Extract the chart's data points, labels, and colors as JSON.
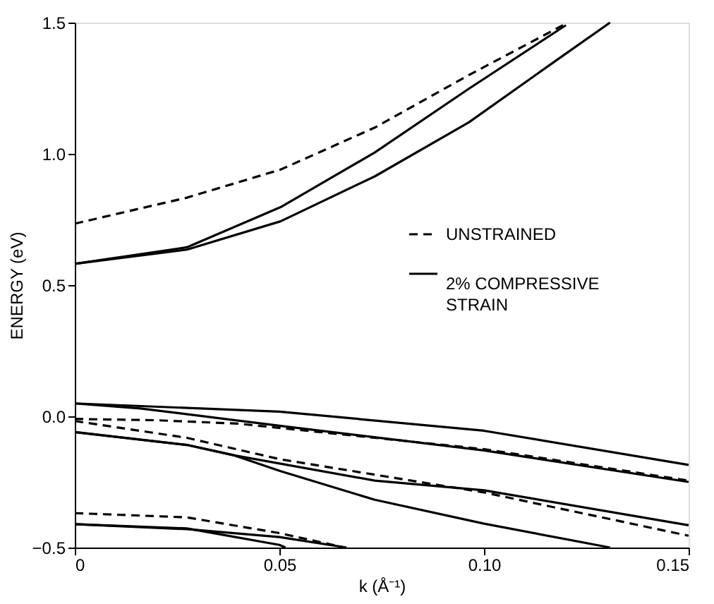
{
  "chart_data": {
    "type": "line",
    "xlabel": "k (Å⁻¹)",
    "ylabel": "ENERGY (eV)",
    "xlim": [
      0,
      0.15
    ],
    "xticks": [
      0,
      0.05,
      {
        "value": 0.1,
        "label": "0.10"
      },
      0.15
    ],
    "ylim": [
      -0.5,
      1.5
    ],
    "yticks": [
      {
        "value": -0.5,
        "label": "−0.5"
      },
      {
        "value": 0,
        "label": "0.0"
      },
      0.5,
      {
        "value": 1,
        "label": "1.0"
      },
      1.5
    ],
    "grid": false,
    "legend": "right",
    "marker": "none",
    "series": [
      {
        "name": "UNSTRAINED",
        "color": "#000000",
        "line_style": "dashed",
        "x": [
          0,
          0.0274,
          0.0503,
          0.0733,
          0.0963,
          0.1193
        ],
        "values": [
          0.734,
          0.833,
          0.94,
          1.1,
          1.3,
          1.49
        ]
      },
      {
        "name": "2% COMPRESSIVE STRAIN",
        "color": "#000000",
        "line_style": "solid",
        "x": [
          0,
          0.0274,
          0.0503,
          0.0733,
          0.0963,
          0.12
        ],
        "values": [
          0.581,
          0.644,
          0.797,
          1.005,
          1.248,
          1.49
        ]
      },
      {
        "color": "#000000",
        "line_style": "solid",
        "x": [
          0,
          0.0274,
          0.0503,
          0.0733,
          0.0963,
          0.1193,
          0.1308
        ],
        "values": [
          0.581,
          0.635,
          0.743,
          0.914,
          1.12,
          1.374,
          1.5
        ]
      },
      {
        "color": "#000000",
        "line_style": "solid",
        "x": [
          0,
          0.05,
          0.1,
          0.15
        ],
        "values": [
          0.049,
          0.018,
          -0.055,
          -0.185
        ]
      },
      {
        "color": "#000000",
        "line_style": "solid",
        "x": [
          0,
          0.016,
          0.05,
          0.1,
          0.15
        ],
        "values": [
          0.049,
          0.03,
          -0.036,
          -0.13,
          -0.25
        ]
      },
      {
        "color": "#000000",
        "line_style": "dashed",
        "x": [
          0,
          0.02,
          0.04,
          0.1,
          0.15
        ],
        "values": [
          -0.01,
          -0.015,
          -0.028,
          -0.125,
          -0.245
        ]
      },
      {
        "color": "#000000",
        "line_style": "dashed",
        "x": [
          0,
          0.0274,
          0.0503,
          0.1,
          0.15
        ],
        "values": [
          -0.018,
          -0.082,
          -0.164,
          -0.29,
          -0.455
        ]
      },
      {
        "color": "#000000",
        "line_style": "solid",
        "x": [
          0,
          0.0274,
          0.039,
          0.0503,
          0.0733,
          0.1,
          0.1308
        ],
        "values": [
          -0.06,
          -0.109,
          -0.149,
          -0.209,
          -0.318,
          -0.409,
          -0.5
        ]
      },
      {
        "color": "#000000",
        "line_style": "solid",
        "x": [
          0,
          0.0274,
          0.039,
          0.0733,
          0.1,
          0.15
        ],
        "values": [
          -0.06,
          -0.109,
          -0.149,
          -0.245,
          -0.282,
          -0.415
        ]
      },
      {
        "color": "#000000",
        "line_style": "dashed",
        "x": [
          0,
          0.0274,
          0.05,
          0.066
        ],
        "values": [
          -0.369,
          -0.385,
          -0.445,
          -0.5
        ]
      },
      {
        "color": "#000000",
        "line_style": "solid",
        "x": [
          0,
          0.0274,
          0.05,
          0.0515
        ],
        "values": [
          -0.411,
          -0.427,
          -0.49,
          -0.5
        ]
      },
      {
        "color": "#000000",
        "line_style": "solid",
        "x": [
          0,
          0.0274,
          0.05,
          0.0664
        ],
        "values": [
          -0.411,
          -0.43,
          -0.46,
          -0.5
        ]
      }
    ]
  }
}
